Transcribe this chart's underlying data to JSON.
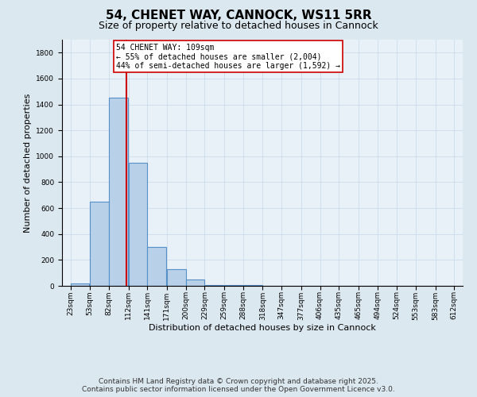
{
  "title": "54, CHENET WAY, CANNOCK, WS11 5RR",
  "subtitle": "Size of property relative to detached houses in Cannock",
  "xlabel": "Distribution of detached houses by size in Cannock",
  "ylabel": "Number of detached properties",
  "bar_left_edges": [
    23,
    53,
    82,
    112,
    141,
    171,
    200,
    229,
    259,
    288,
    318,
    347,
    377,
    406,
    435,
    465,
    494,
    524,
    553,
    583
  ],
  "bar_widths": [
    29,
    29,
    29,
    29,
    29,
    29,
    29,
    29,
    29,
    29,
    29,
    29,
    29,
    29,
    29,
    29,
    29,
    29,
    29,
    29
  ],
  "bar_heights": [
    20,
    650,
    1450,
    950,
    300,
    130,
    50,
    8,
    5,
    5,
    3,
    3,
    3,
    3,
    3,
    3,
    3,
    3,
    3,
    3
  ],
  "bar_color": "#b8d0e8",
  "bar_edge_color": "#5590c8",
  "bar_edge_width": 0.8,
  "red_line_x": 109,
  "red_line_color": "#cc0000",
  "annotation_line1": "54 CHENET WAY: 109sqm",
  "annotation_line2": "← 55% of detached houses are smaller (2,004)",
  "annotation_line3": "44% of semi-detached houses are larger (1,592) →",
  "annotation_box_facecolor": "#ffffff",
  "annotation_box_edgecolor": "#cc0000",
  "ylim": [
    0,
    1900
  ],
  "xlim": [
    10,
    625
  ],
  "yticks": [
    0,
    200,
    400,
    600,
    800,
    1000,
    1200,
    1400,
    1600,
    1800
  ],
  "xtick_labels": [
    "23sqm",
    "53sqm",
    "82sqm",
    "112sqm",
    "141sqm",
    "171sqm",
    "200sqm",
    "229sqm",
    "259sqm",
    "288sqm",
    "318sqm",
    "347sqm",
    "377sqm",
    "406sqm",
    "435sqm",
    "465sqm",
    "494sqm",
    "524sqm",
    "553sqm",
    "583sqm",
    "612sqm"
  ],
  "xtick_positions": [
    23,
    53,
    82,
    112,
    141,
    171,
    200,
    229,
    259,
    288,
    318,
    347,
    377,
    406,
    435,
    465,
    494,
    524,
    553,
    583,
    612
  ],
  "grid_color": "#c8d8e8",
  "background_color": "#dce8f0",
  "plot_bg_color": "#e8f0f8",
  "footer_line1": "Contains HM Land Registry data © Crown copyright and database right 2025.",
  "footer_line2": "Contains public sector information licensed under the Open Government Licence v3.0.",
  "title_fontsize": 11,
  "subtitle_fontsize": 9,
  "axis_label_fontsize": 8,
  "tick_fontsize": 6.5,
  "footer_fontsize": 6.5,
  "annotation_fontsize": 7
}
